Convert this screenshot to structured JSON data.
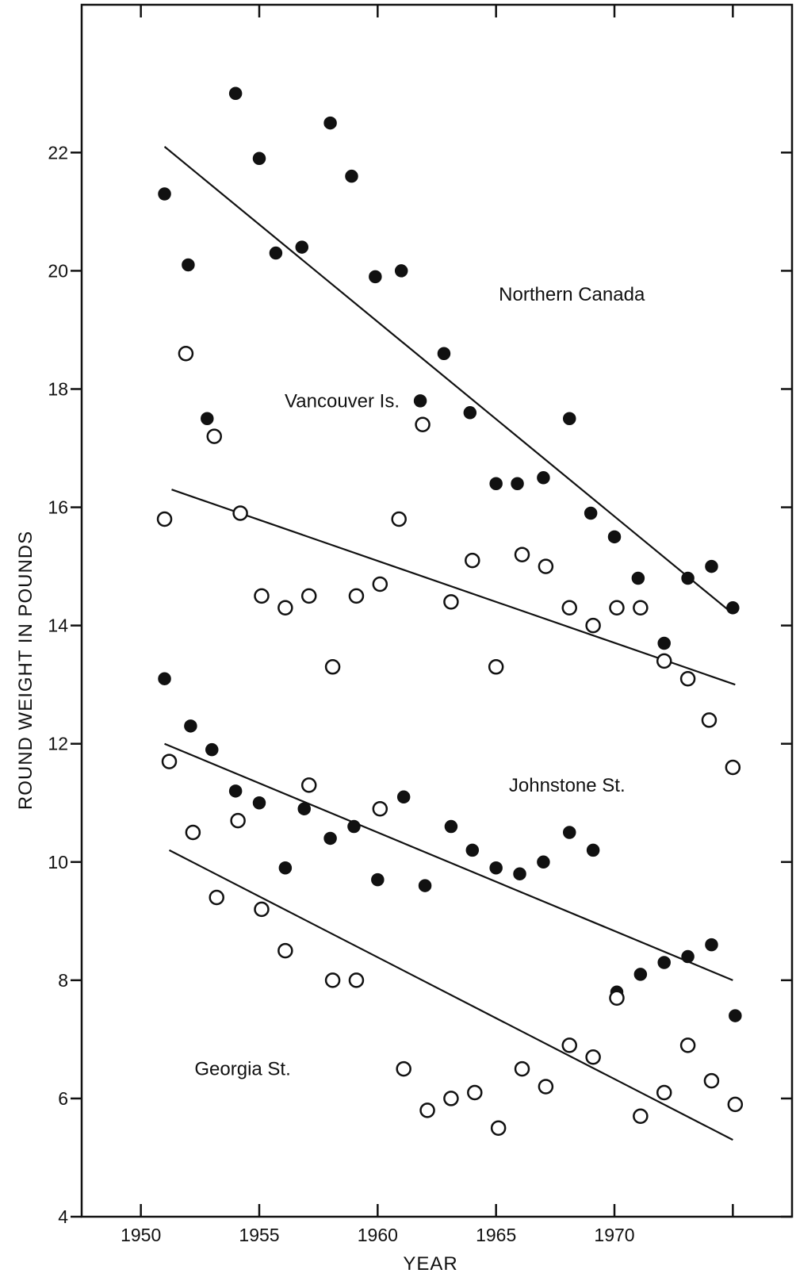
{
  "chart_data": {
    "type": "scatter",
    "xlabel": "YEAR",
    "ylabel": "ROUND WEIGHT IN POUNDS",
    "xlim": [
      1947.5,
      1977.5
    ],
    "ylim": [
      4,
      24.5
    ],
    "x_ticks": [
      1950,
      1955,
      1960,
      1965,
      1970
    ],
    "x_tick_labels": [
      "1950",
      "1955",
      "1960",
      "1965",
      "1970"
    ],
    "x_minor_ticks": [
      1975
    ],
    "y_ticks": [
      4,
      6,
      8,
      10,
      12,
      14,
      16,
      18,
      20,
      22
    ],
    "y_tick_labels": [
      "4",
      "6",
      "8",
      "10",
      "12",
      "14",
      "16",
      "18",
      "20",
      "22"
    ],
    "grid": false,
    "legend": "none",
    "annotations": [
      {
        "text": "Northern Canada",
        "x": 1968.2,
        "y": 19.6
      },
      {
        "text": "Vancouver Is.",
        "x": 1958.5,
        "y": 17.8
      },
      {
        "text": "Johnstone St.",
        "x": 1968.0,
        "y": 11.3
      },
      {
        "text": "Georgia St.",
        "x": 1954.3,
        "y": 6.5
      }
    ],
    "series": [
      {
        "marker": "filled",
        "points": [
          [
            1951,
            21.3
          ],
          [
            1952,
            20.1
          ],
          [
            1952.8,
            17.5
          ],
          [
            1954,
            23.0
          ],
          [
            1955,
            21.9
          ],
          [
            1955.7,
            20.3
          ],
          [
            1956.8,
            20.4
          ],
          [
            1958,
            22.5
          ],
          [
            1958.9,
            21.6
          ],
          [
            1959.9,
            19.9
          ],
          [
            1961,
            20.0
          ],
          [
            1961.8,
            17.8
          ],
          [
            1962.8,
            18.6
          ],
          [
            1963.9,
            17.6
          ],
          [
            1965,
            16.4
          ],
          [
            1965.9,
            16.4
          ],
          [
            1967,
            16.5
          ],
          [
            1968.1,
            17.5
          ],
          [
            1969,
            15.9
          ],
          [
            1970,
            15.5
          ],
          [
            1971,
            14.8
          ],
          [
            1972.1,
            13.7
          ],
          [
            1973.1,
            14.8
          ],
          [
            1974.1,
            15.0
          ],
          [
            1975,
            14.3
          ]
        ]
      },
      {
        "marker": "open",
        "points": [
          [
            1951,
            15.8
          ],
          [
            1951.9,
            18.6
          ],
          [
            1953.1,
            17.2
          ],
          [
            1954.2,
            15.9
          ],
          [
            1955.1,
            14.5
          ],
          [
            1956.1,
            14.3
          ],
          [
            1957.1,
            14.5
          ],
          [
            1958.1,
            13.3
          ],
          [
            1959.1,
            14.5
          ],
          [
            1960.1,
            14.7
          ],
          [
            1960.9,
            15.8
          ],
          [
            1961.9,
            17.4
          ],
          [
            1963.1,
            14.4
          ],
          [
            1964,
            15.1
          ],
          [
            1965,
            13.3
          ],
          [
            1966.1,
            15.2
          ],
          [
            1967.1,
            15.0
          ],
          [
            1968.1,
            14.3
          ],
          [
            1969.1,
            14.0
          ],
          [
            1970.1,
            14.3
          ],
          [
            1971.1,
            14.3
          ],
          [
            1972.1,
            13.4
          ],
          [
            1973.1,
            13.1
          ],
          [
            1974,
            12.4
          ],
          [
            1975,
            11.6
          ]
        ]
      },
      {
        "marker": "filled",
        "points": [
          [
            1951,
            13.1
          ],
          [
            1952.1,
            12.3
          ],
          [
            1953,
            11.9
          ],
          [
            1954,
            11.2
          ],
          [
            1955,
            11.0
          ],
          [
            1956.1,
            9.9
          ],
          [
            1956.9,
            10.9
          ],
          [
            1958,
            10.4
          ],
          [
            1959,
            10.6
          ],
          [
            1960,
            9.7
          ],
          [
            1961.1,
            11.1
          ],
          [
            1962,
            9.6
          ],
          [
            1963.1,
            10.6
          ],
          [
            1964,
            10.2
          ],
          [
            1965,
            9.9
          ],
          [
            1966,
            9.8
          ],
          [
            1967,
            10.0
          ],
          [
            1968.1,
            10.5
          ],
          [
            1969.1,
            10.2
          ],
          [
            1970.1,
            7.8
          ],
          [
            1971.1,
            8.1
          ],
          [
            1972.1,
            8.3
          ],
          [
            1973.1,
            8.4
          ],
          [
            1974.1,
            8.6
          ],
          [
            1975.1,
            7.4
          ]
        ]
      },
      {
        "marker": "open",
        "points": [
          [
            1951.2,
            11.7
          ],
          [
            1952.2,
            10.5
          ],
          [
            1953.2,
            9.4
          ],
          [
            1954.1,
            10.7
          ],
          [
            1955.1,
            9.2
          ],
          [
            1956.1,
            8.5
          ],
          [
            1957.1,
            11.3
          ],
          [
            1958.1,
            8.0
          ],
          [
            1959.1,
            8.0
          ],
          [
            1960.1,
            10.9
          ],
          [
            1961.1,
            6.5
          ],
          [
            1962.1,
            5.8
          ],
          [
            1963.1,
            6.0
          ],
          [
            1964.1,
            6.1
          ],
          [
            1965.1,
            5.5
          ],
          [
            1966.1,
            6.5
          ],
          [
            1967.1,
            6.2
          ],
          [
            1968.1,
            6.9
          ],
          [
            1969.1,
            6.7
          ],
          [
            1970.1,
            7.7
          ],
          [
            1971.1,
            5.7
          ],
          [
            1972.1,
            6.1
          ],
          [
            1973.1,
            6.9
          ],
          [
            1974.1,
            6.3
          ],
          [
            1975.1,
            5.9
          ]
        ]
      }
    ],
    "trend_lines": [
      {
        "from": [
          1951,
          22.1
        ],
        "to": [
          1975,
          14.2
        ]
      },
      {
        "from": [
          1951.3,
          16.3
        ],
        "to": [
          1975.1,
          13.0
        ]
      },
      {
        "from": [
          1951,
          12.0
        ],
        "to": [
          1975,
          8.0
        ]
      },
      {
        "from": [
          1951.2,
          10.2
        ],
        "to": [
          1975,
          5.3
        ]
      }
    ]
  }
}
